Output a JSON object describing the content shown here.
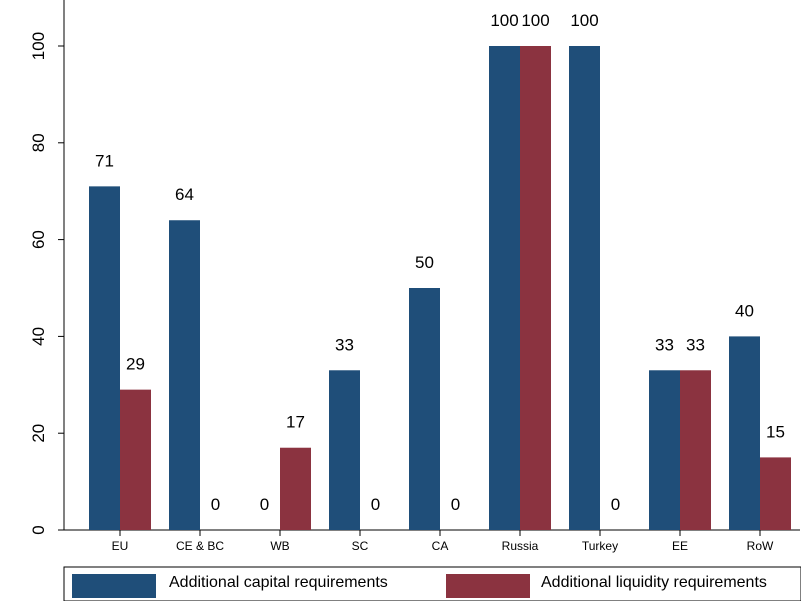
{
  "chart_data": {
    "type": "bar",
    "categories": [
      "EU",
      "CE & BC",
      "WB",
      "SC",
      "CA",
      "Russia",
      "Turkey",
      "EE",
      "RoW"
    ],
    "series": [
      {
        "name": "Additional capital requirements",
        "values": [
          71,
          64,
          0,
          33,
          50,
          100,
          100,
          33,
          40
        ],
        "color": "#1f4e79"
      },
      {
        "name": "Additional liquidity requirements",
        "values": [
          29,
          0,
          17,
          0,
          0,
          100,
          0,
          33,
          15
        ],
        "color": "#8b3340"
      }
    ],
    "data_labels": [
      [
        "71",
        "64",
        "0",
        "33",
        "50",
        "100",
        "100",
        "33",
        "40"
      ],
      [
        "29",
        "0",
        "17",
        "0",
        "0",
        "100",
        "0",
        "33",
        "15"
      ]
    ],
    "y_ticks": [
      0,
      20,
      40,
      60,
      80,
      100
    ],
    "ylim": [
      0,
      100
    ],
    "title": "",
    "xlabel": "",
    "ylabel": "",
    "grid": false,
    "legend_position": "bottom"
  }
}
